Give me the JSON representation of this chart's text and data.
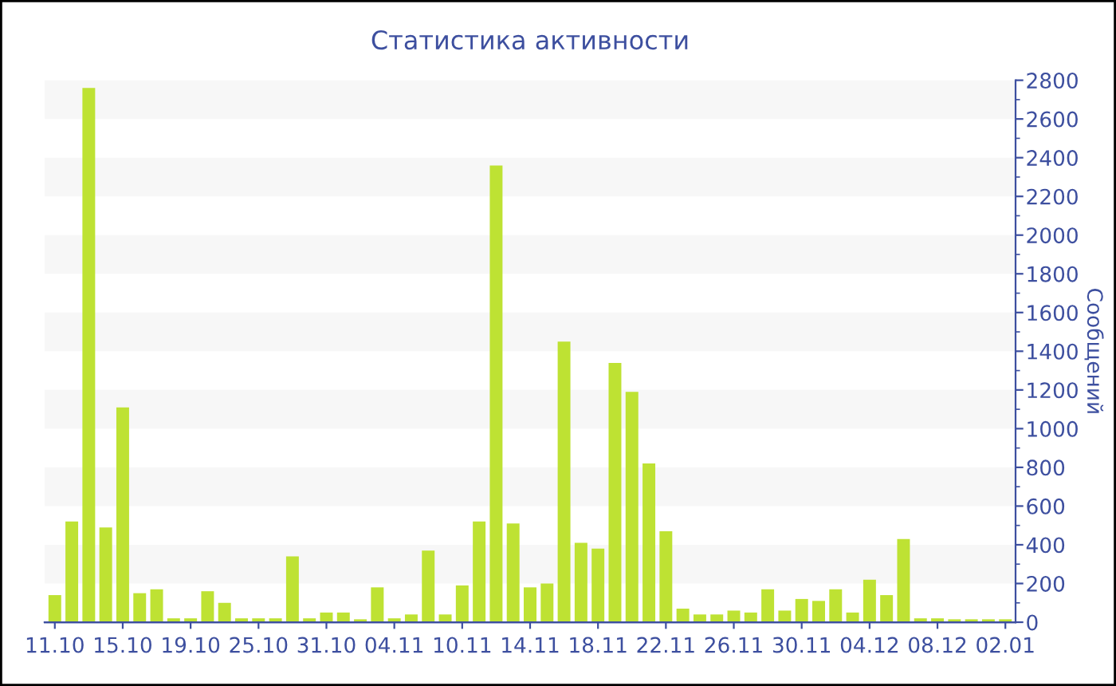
{
  "chart_data": {
    "type": "bar",
    "title": "Статистика активности",
    "y2label": "Сообщений",
    "categories": [
      "11.10",
      null,
      null,
      null,
      "15.10",
      null,
      null,
      null,
      "19.10",
      null,
      null,
      null,
      "25.10",
      null,
      null,
      null,
      "31.10",
      null,
      null,
      null,
      "04.11",
      null,
      null,
      null,
      "10.11",
      null,
      null,
      null,
      "14.11",
      null,
      null,
      null,
      "18.11",
      null,
      null,
      null,
      "22.11",
      null,
      null,
      null,
      "26.11",
      null,
      null,
      null,
      "30.11",
      null,
      null,
      null,
      "04.12",
      null,
      null,
      null,
      "08.12",
      null,
      null,
      null,
      "02.01"
    ],
    "series": [
      {
        "color": "#bee233",
        "axis": "y2",
        "values": [
          140,
          520,
          2760,
          490,
          1110,
          150,
          170,
          20,
          20,
          160,
          100,
          20,
          20,
          20,
          340,
          20,
          50,
          50,
          15,
          180,
          20,
          40,
          370,
          40,
          190,
          520,
          2360,
          510,
          180,
          200,
          1450,
          410,
          380,
          1340,
          1190,
          820,
          470,
          70,
          40,
          40,
          60,
          50,
          170,
          60,
          120,
          110,
          170,
          50,
          220,
          140,
          430,
          20,
          20,
          15,
          15,
          15,
          15
        ]
      }
    ],
    "y2lim": [
      0,
      2800
    ],
    "y2ticks": [
      0,
      200,
      400,
      600,
      800,
      1000,
      1200,
      1400,
      1600,
      1800,
      2000,
      2200,
      2400,
      2600,
      2800
    ],
    "bands": [
      {
        "axis": "y2",
        "from": 200,
        "to": 400,
        "color": "#f7f7f7"
      },
      {
        "axis": "y2",
        "from": 600,
        "to": 800,
        "color": "#f7f7f7"
      },
      {
        "axis": "y2",
        "from": 1000,
        "to": 1200,
        "color": "#f7f7f7"
      },
      {
        "axis": "y2",
        "from": 1400,
        "to": 1600,
        "color": "#f7f7f7"
      },
      {
        "axis": "y2",
        "from": 1800,
        "to": 2000,
        "color": "#f7f7f7"
      },
      {
        "axis": "y2",
        "from": 2200,
        "to": 2400,
        "color": "#f7f7f7"
      },
      {
        "axis": "y2",
        "from": 2600,
        "to": 2800,
        "color": "#f7f7f7"
      }
    ],
    "legend": false
  }
}
